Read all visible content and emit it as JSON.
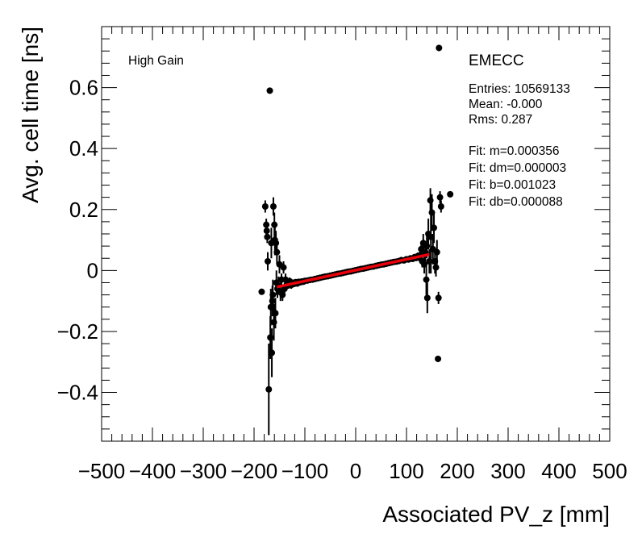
{
  "chart_data": {
    "type": "scatter",
    "title": "",
    "xlabel": "Associated PV_z [mm]",
    "ylabel": "Avg. cell time [ns]",
    "xlim": [
      -500,
      500
    ],
    "ylim": [
      -0.56,
      0.8
    ],
    "x_ticks": [
      -500,
      -400,
      -300,
      -200,
      -100,
      0,
      100,
      200,
      300,
      400,
      500
    ],
    "x_tick_labels": [
      "−500",
      "−400",
      "−300",
      "−200",
      "−100",
      "0",
      "100",
      "200",
      "300",
      "400",
      "500"
    ],
    "y_ticks": [
      -0.4,
      -0.2,
      0,
      0.2,
      0.4,
      0.6
    ],
    "y_tick_labels": [
      "−0.4",
      "−0.2",
      "0",
      "0.2",
      "0.4",
      "0.6"
    ],
    "gain_label": "High Gain",
    "region_label": "EMECC",
    "stats": [
      "Entries: 10569133",
      "Mean: -0.000",
      "Rms: 0.287"
    ],
    "fit_results": [
      "Fit: m=0.000356",
      "Fit: dm=0.000003",
      "Fit: b=0.001023",
      "Fit: db=0.000088"
    ],
    "fit": {
      "m": 0.000356,
      "b": 0.001023,
      "x_range": [
        -155,
        145
      ],
      "color": "#e8000b"
    },
    "points": [
      {
        "x": -185,
        "y": -0.07,
        "err": 0.01
      },
      {
        "x": -178,
        "y": 0.21,
        "err": 0.02
      },
      {
        "x": -176,
        "y": 0.15,
        "err": 0.02
      },
      {
        "x": -175,
        "y": 0.13,
        "err": 0.02
      },
      {
        "x": -174,
        "y": 0.11,
        "err": 0.02
      },
      {
        "x": -173,
        "y": 0.03,
        "err": 0.03
      },
      {
        "x": -171,
        "y": -0.39,
        "err": 0.15
      },
      {
        "x": -169,
        "y": 0.59,
        "err": 0.01
      },
      {
        "x": -168,
        "y": -0.22,
        "err": 0.07
      },
      {
        "x": -167,
        "y": -0.12,
        "err": 0.06
      },
      {
        "x": -166,
        "y": 0.09,
        "err": 0.05
      },
      {
        "x": -165,
        "y": -0.27,
        "err": 0.08
      },
      {
        "x": -164,
        "y": -0.1,
        "err": 0.05
      },
      {
        "x": -163,
        "y": -0.08,
        "err": 0.05
      },
      {
        "x": -162,
        "y": 0.21,
        "err": 0.03
      },
      {
        "x": -161,
        "y": -0.17,
        "err": 0.06
      },
      {
        "x": -160,
        "y": 0.15,
        "err": 0.04
      },
      {
        "x": -159,
        "y": 0.1,
        "err": 0.05
      },
      {
        "x": -158,
        "y": -0.14,
        "err": 0.05
      },
      {
        "x": -157,
        "y": 0.09,
        "err": 0.04
      },
      {
        "x": -156,
        "y": -0.04,
        "err": 0.04
      },
      {
        "x": -155,
        "y": 0.06,
        "err": 0.04
      },
      {
        "x": -154,
        "y": -0.06,
        "err": 0.03
      },
      {
        "x": -152,
        "y": -0.05,
        "err": 0.03
      },
      {
        "x": -150,
        "y": 0.02,
        "err": 0.03
      },
      {
        "x": -148,
        "y": -0.07,
        "err": 0.03
      },
      {
        "x": -146,
        "y": -0.03,
        "err": 0.02
      },
      {
        "x": -144,
        "y": -0.08,
        "err": 0.02
      },
      {
        "x": -142,
        "y": 0.01,
        "err": 0.02
      },
      {
        "x": -140,
        "y": -0.06,
        "err": 0.02
      },
      {
        "x": -138,
        "y": -0.03,
        "err": 0.02
      },
      {
        "x": -136,
        "y": -0.05,
        "err": 0.015
      },
      {
        "x": -134,
        "y": -0.04,
        "err": 0.015
      },
      {
        "x": -132,
        "y": -0.045,
        "err": 0.015
      },
      {
        "x": -130,
        "y": -0.035,
        "err": 0.012
      },
      {
        "x": -127,
        "y": -0.048,
        "err": 0.012
      },
      {
        "x": -124,
        "y": -0.04,
        "err": 0.01
      },
      {
        "x": -121,
        "y": -0.044,
        "err": 0.01
      },
      {
        "x": -118,
        "y": -0.038,
        "err": 0.008
      },
      {
        "x": -115,
        "y": -0.043,
        "err": 0.008
      },
      {
        "x": -112,
        "y": -0.037,
        "err": 0.007
      },
      {
        "x": -109,
        "y": -0.039,
        "err": 0.007
      },
      {
        "x": -106,
        "y": -0.036,
        "err": 0.006
      },
      {
        "x": -103,
        "y": -0.037,
        "err": 0.006
      },
      {
        "x": -100,
        "y": -0.034,
        "err": 0.005
      },
      {
        "x": -95,
        "y": -0.033,
        "err": 0.005
      },
      {
        "x": -90,
        "y": -0.031,
        "err": 0.005
      },
      {
        "x": -85,
        "y": -0.03,
        "err": 0.005
      },
      {
        "x": -80,
        "y": -0.028,
        "err": 0.005
      },
      {
        "x": -75,
        "y": -0.026,
        "err": 0.005
      },
      {
        "x": -70,
        "y": -0.024,
        "err": 0.005
      },
      {
        "x": -65,
        "y": -0.022,
        "err": 0.005
      },
      {
        "x": -60,
        "y": -0.02,
        "err": 0.005
      },
      {
        "x": -55,
        "y": -0.019,
        "err": 0.005
      },
      {
        "x": -50,
        "y": -0.017,
        "err": 0.005
      },
      {
        "x": -45,
        "y": -0.015,
        "err": 0.005
      },
      {
        "x": -40,
        "y": -0.013,
        "err": 0.005
      },
      {
        "x": -35,
        "y": -0.011,
        "err": 0.005
      },
      {
        "x": -30,
        "y": -0.01,
        "err": 0.005
      },
      {
        "x": -25,
        "y": -0.008,
        "err": 0.005
      },
      {
        "x": -20,
        "y": -0.006,
        "err": 0.005
      },
      {
        "x": -15,
        "y": -0.004,
        "err": 0.005
      },
      {
        "x": -10,
        "y": -0.003,
        "err": 0.005
      },
      {
        "x": -5,
        "y": -0.001,
        "err": 0.005
      },
      {
        "x": 0,
        "y": 0.001,
        "err": 0.005
      },
      {
        "x": 5,
        "y": 0.003,
        "err": 0.005
      },
      {
        "x": 10,
        "y": 0.005,
        "err": 0.005
      },
      {
        "x": 15,
        "y": 0.006,
        "err": 0.005
      },
      {
        "x": 20,
        "y": 0.008,
        "err": 0.005
      },
      {
        "x": 25,
        "y": 0.01,
        "err": 0.005
      },
      {
        "x": 30,
        "y": 0.012,
        "err": 0.005
      },
      {
        "x": 35,
        "y": 0.013,
        "err": 0.005
      },
      {
        "x": 40,
        "y": 0.015,
        "err": 0.005
      },
      {
        "x": 45,
        "y": 0.017,
        "err": 0.005
      },
      {
        "x": 50,
        "y": 0.019,
        "err": 0.005
      },
      {
        "x": 55,
        "y": 0.02,
        "err": 0.005
      },
      {
        "x": 60,
        "y": 0.022,
        "err": 0.005
      },
      {
        "x": 65,
        "y": 0.024,
        "err": 0.005
      },
      {
        "x": 70,
        "y": 0.026,
        "err": 0.005
      },
      {
        "x": 75,
        "y": 0.028,
        "err": 0.005
      },
      {
        "x": 80,
        "y": 0.029,
        "err": 0.006
      },
      {
        "x": 85,
        "y": 0.031,
        "err": 0.006
      },
      {
        "x": 90,
        "y": 0.034,
        "err": 0.006
      },
      {
        "x": 95,
        "y": 0.033,
        "err": 0.007
      },
      {
        "x": 100,
        "y": 0.037,
        "err": 0.007
      },
      {
        "x": 104,
        "y": 0.036,
        "err": 0.008
      },
      {
        "x": 108,
        "y": 0.04,
        "err": 0.008
      },
      {
        "x": 112,
        "y": 0.038,
        "err": 0.009
      },
      {
        "x": 116,
        "y": 0.044,
        "err": 0.01
      },
      {
        "x": 119,
        "y": 0.041,
        "err": 0.01
      },
      {
        "x": 122,
        "y": 0.047,
        "err": 0.012
      },
      {
        "x": 125,
        "y": 0.043,
        "err": 0.013
      },
      {
        "x": 127,
        "y": 0.05,
        "err": 0.015
      },
      {
        "x": 129,
        "y": 0.07,
        "err": 0.02
      },
      {
        "x": 131,
        "y": 0.03,
        "err": 0.02
      },
      {
        "x": 133,
        "y": 0.09,
        "err": 0.03
      },
      {
        "x": 135,
        "y": 0.02,
        "err": 0.03
      },
      {
        "x": 137,
        "y": 0.06,
        "err": 0.03
      },
      {
        "x": 139,
        "y": -0.03,
        "err": 0.05
      },
      {
        "x": 140,
        "y": 0.08,
        "err": 0.04
      },
      {
        "x": 141,
        "y": -0.09,
        "err": 0.05
      },
      {
        "x": 143,
        "y": 0.12,
        "err": 0.05
      },
      {
        "x": 145,
        "y": 0.03,
        "err": 0.04
      },
      {
        "x": 147,
        "y": 0.23,
        "err": 0.04
      },
      {
        "x": 148,
        "y": 0.11,
        "err": 0.12
      },
      {
        "x": 150,
        "y": 0.19,
        "err": 0.06
      },
      {
        "x": 152,
        "y": 0.07,
        "err": 0.05
      },
      {
        "x": 154,
        "y": 0.14,
        "err": 0.05
      },
      {
        "x": 156,
        "y": 0.03,
        "err": 0.04
      },
      {
        "x": 158,
        "y": 0.01,
        "err": 0.03
      },
      {
        "x": 160,
        "y": 0.06,
        "err": 0.04
      },
      {
        "x": 162,
        "y": -0.29,
        "err": 0.01
      },
      {
        "x": 163,
        "y": -0.09,
        "err": 0.02
      },
      {
        "x": 164,
        "y": 0.73,
        "err": 0.01
      },
      {
        "x": 166,
        "y": 0.24,
        "err": 0.02
      },
      {
        "x": 168,
        "y": 0.21,
        "err": 0.02
      },
      {
        "x": 186,
        "y": 0.25,
        "err": 0.01
      }
    ]
  }
}
